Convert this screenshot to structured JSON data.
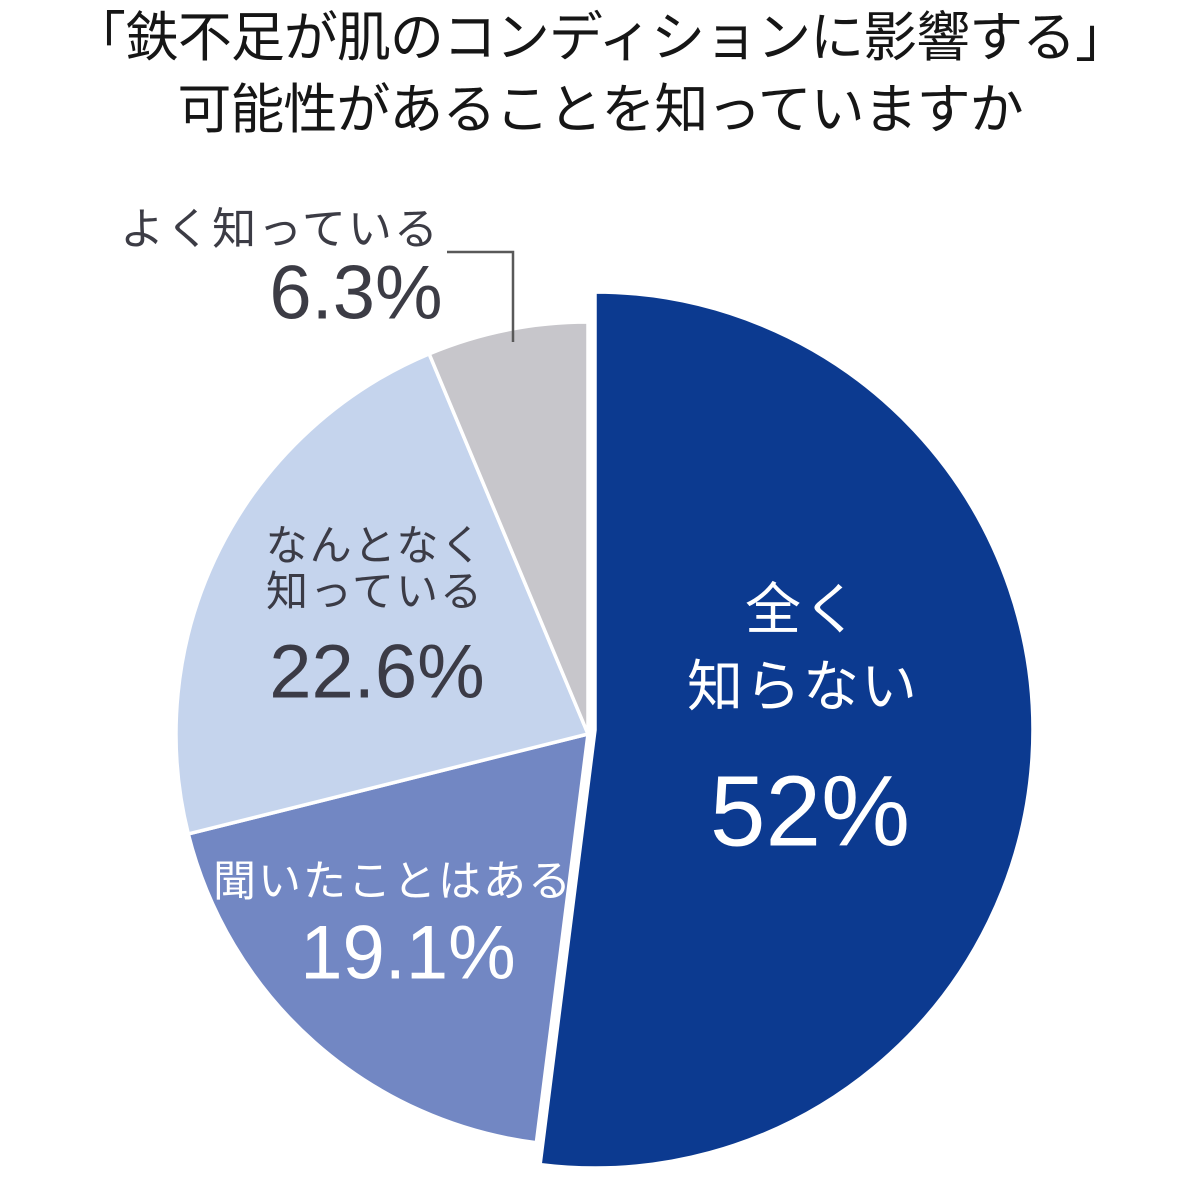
{
  "chart_data": {
    "type": "pie",
    "title": "「鉄不足が肌のコンディションに影響する」\n可能性があることを知っていますか",
    "unit": "%",
    "start_angle_deg": 0,
    "direction": "clockwise",
    "legend": "none (labels placed on/near slices)",
    "slices": [
      {
        "id": "not-know",
        "label": "全く\n知らない",
        "value": 52.0,
        "pct": "52%",
        "color": "#0c3a90",
        "text_color": "#ffffff",
        "emphasized": true
      },
      {
        "id": "heard",
        "label": "聞いたことはある",
        "value": 19.1,
        "pct": "19.1%",
        "color": "#7287c3",
        "text_color": "#ffffff",
        "emphasized": false
      },
      {
        "id": "vaguely-know",
        "label": "なんとなく\n知っている",
        "value": 22.6,
        "pct": "22.6%",
        "color": "#c5d4ed",
        "text_color": "#3b3b46",
        "emphasized": false
      },
      {
        "id": "know-well",
        "label": "よく知っている",
        "value": 6.3,
        "pct": "6.3%",
        "color": "#c7c6cb",
        "text_color": "#3c3c45",
        "emphasized": false
      }
    ],
    "colors": {
      "background": "#ffffff",
      "title_text": "#161616",
      "outside_label_text": "#3c3c45",
      "leader_line": "#595959",
      "slice_separator": "#ffffff"
    }
  }
}
